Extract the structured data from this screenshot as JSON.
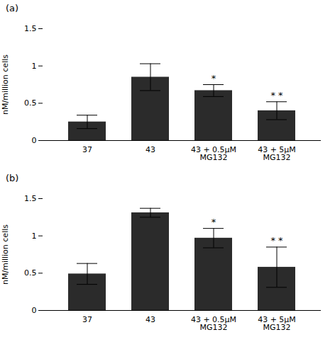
{
  "chart_data": [
    {
      "type": "bar",
      "title": "(a)",
      "categories": [
        "37",
        "43",
        "43 + 0.5μM\nMG132",
        "43 + 5μM\nMG132"
      ],
      "values": [
        0.25,
        0.85,
        0.67,
        0.4
      ],
      "errors": [
        0.09,
        0.18,
        0.08,
        0.12
      ],
      "annotations": [
        {
          "x": "43 + 0.5μM\nMG132",
          "text": "*"
        },
        {
          "x": "43 + 5μM\nMG132",
          "text": "* *"
        }
      ],
      "ylabel": "nM/million cells",
      "color": "#2b2b2b",
      "ylim": [
        0,
        1.5
      ],
      "yticks": [
        0,
        0.5,
        1,
        1.5
      ],
      "grid": false
    },
    {
      "type": "bar",
      "title": "(b)",
      "categories": [
        "37",
        "43",
        "43 + 0.5μM\nMG132",
        "43 + 5μM\nMG132"
      ],
      "values": [
        0.49,
        1.31,
        0.97,
        0.58
      ],
      "errors": [
        0.14,
        0.06,
        0.13,
        0.27
      ],
      "annotations": [
        {
          "x": "43 + 0.5μM\nMG132",
          "text": "*"
        },
        {
          "x": "43 + 5μM\nMG132",
          "text": "* *"
        }
      ],
      "ylabel": "nM/million cells",
      "color": "#2b2b2b",
      "ylim": [
        0,
        1.5
      ],
      "yticks": [
        0,
        0.5,
        1,
        1.5
      ],
      "grid": false
    }
  ]
}
